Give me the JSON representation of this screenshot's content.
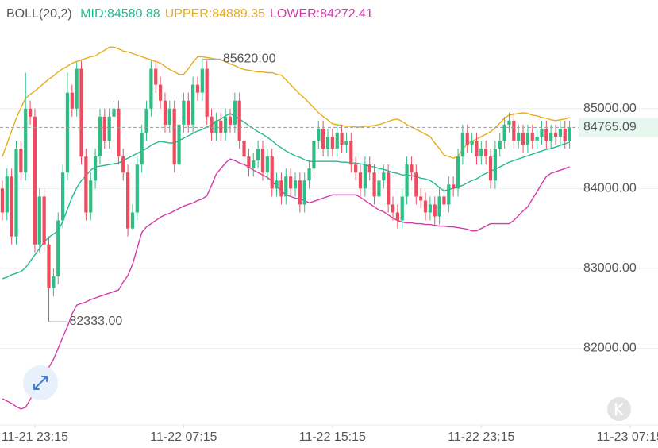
{
  "chart_data": {
    "type": "candlestick",
    "title": "BOLL(20,2)",
    "up_color": "#2ebd85",
    "down_color": "#ef4b5f",
    "open": [
      84000,
      83700,
      84150,
      83400,
      84500,
      84200,
      85000,
      84900,
      83300,
      83900,
      83300,
      82750,
      82900,
      83600,
      84200,
      85200,
      85000,
      85500,
      84400,
      83700,
      84100,
      84400,
      84900,
      84600,
      84900,
      85000,
      84400,
      84200,
      83500,
      83700,
      84300,
      84700,
      85000,
      85500,
      85300,
      85100,
      84800,
      85000,
      84300,
      84800,
      85100,
      84800,
      85300,
      85200,
      85500,
      84900,
      84700,
      84850,
      84700,
      84900,
      84800,
      85100,
      84600,
      84400,
      84250,
      84350,
      84500,
      84200,
      84400,
      84000,
      84100,
      83900,
      84150,
      84000,
      84100,
      83800,
      84100,
      84250,
      84600,
      84750,
      84500,
      84650,
      84500,
      84700,
      84550,
      84600,
      84300,
      84200,
      84000,
      84300,
      84200,
      83900,
      84100,
      84200,
      83800,
      83700,
      83600,
      83900,
      84300,
      84200,
      83900,
      83850,
      83700,
      83800,
      83650,
      83900,
      83800,
      84050,
      84000,
      84400,
      84700,
      84550,
      84600,
      84400,
      84500,
      84400,
      84100,
      84500,
      84600,
      84800,
      84850,
      84600,
      84700,
      84550,
      84700,
      84600,
      84650,
      84750,
      84600,
      84700,
      84650,
      84750,
      84600
    ],
    "high": [
      84100,
      84250,
      84250,
      84600,
      84600,
      85450,
      85100,
      85000,
      84000,
      84000,
      83400,
      83000,
      83700,
      84300,
      85450,
      85300,
      85580,
      85600,
      84500,
      84200,
      84500,
      85000,
      85000,
      85000,
      85100,
      85100,
      84500,
      84300,
      83800,
      84400,
      84800,
      85100,
      85600,
      85600,
      85400,
      85200,
      85100,
      85100,
      84900,
      85200,
      85200,
      85400,
      85400,
      85620,
      85600,
      85000,
      84950,
      84950,
      85000,
      85000,
      85200,
      85200,
      84700,
      84500,
      84450,
      84600,
      84600,
      84500,
      84500,
      84200,
      84200,
      84250,
      84250,
      84200,
      84200,
      84200,
      84350,
      84700,
      84850,
      84850,
      84750,
      84750,
      84800,
      84800,
      84700,
      84700,
      84400,
      84300,
      84400,
      84400,
      84300,
      84200,
      84300,
      84300,
      83900,
      83800,
      84000,
      84400,
      84400,
      84300,
      84000,
      83950,
      83900,
      83900,
      84000,
      84000,
      84150,
      84150,
      84500,
      84800,
      84800,
      84700,
      84700,
      84600,
      84600,
      84500,
      84600,
      84700,
      84900,
      84950,
      84950,
      84800,
      84800,
      84800,
      84800,
      84750,
      84850,
      84850,
      84800,
      84800,
      84850,
      84850,
      84850
    ],
    "low": [
      83600,
      83600,
      83300,
      83300,
      84100,
      84100,
      84800,
      83200,
      83200,
      83200,
      82333,
      82650,
      82800,
      83500,
      84100,
      84900,
      84900,
      84300,
      83600,
      83600,
      84000,
      84300,
      84500,
      84500,
      84800,
      84300,
      84100,
      83400,
      83480,
      83600,
      84200,
      84600,
      84900,
      85200,
      85000,
      84700,
      84700,
      84200,
      84200,
      84700,
      84700,
      84700,
      85100,
      85100,
      84800,
      84600,
      84600,
      84600,
      84600,
      84700,
      84700,
      84500,
      84300,
      84150,
      84150,
      84250,
      84100,
      84100,
      83900,
      83900,
      83800,
      83800,
      83900,
      83900,
      83700,
      83700,
      84000,
      84150,
      84500,
      84400,
      84400,
      84400,
      84400,
      84450,
      84450,
      84200,
      84100,
      83900,
      83900,
      84100,
      83800,
      83800,
      84000,
      83700,
      83600,
      83500,
      83500,
      83800,
      84100,
      83800,
      83750,
      83600,
      83600,
      83550,
      83550,
      83700,
      83700,
      83900,
      83900,
      84300,
      84450,
      84450,
      84300,
      84300,
      84300,
      84000,
      84000,
      84400,
      84500,
      84700,
      84500,
      84500,
      84450,
      84450,
      84500,
      84500,
      84550,
      84500,
      84500,
      84550,
      84550,
      84500,
      84500
    ],
    "close": [
      83700,
      84150,
      83400,
      84500,
      84200,
      85000,
      84900,
      83300,
      83900,
      83300,
      82750,
      82900,
      83600,
      84200,
      85200,
      85000,
      85500,
      84400,
      83700,
      84100,
      84400,
      84900,
      84600,
      84900,
      85000,
      84400,
      84200,
      83500,
      83700,
      84300,
      84700,
      85000,
      85500,
      85300,
      85100,
      84800,
      85000,
      84300,
      84800,
      85100,
      84800,
      85300,
      85200,
      85500,
      84900,
      84700,
      84850,
      84700,
      84900,
      84800,
      85100,
      84600,
      84400,
      84250,
      84350,
      84500,
      84200,
      84400,
      84000,
      84100,
      83900,
      84150,
      84000,
      84100,
      83800,
      84100,
      84250,
      84600,
      84750,
      84500,
      84650,
      84500,
      84700,
      84550,
      84600,
      84300,
      84200,
      84000,
      84300,
      84200,
      83900,
      84100,
      84200,
      83800,
      83700,
      83600,
      83900,
      84300,
      84200,
      83900,
      83850,
      83700,
      83800,
      83650,
      83900,
      83800,
      84050,
      84000,
      84400,
      84700,
      84550,
      84600,
      84400,
      84500,
      84400,
      84100,
      84500,
      84600,
      84800,
      84850,
      84600,
      84700,
      84550,
      84700,
      84600,
      84650,
      84750,
      84600,
      84700,
      84650,
      84750,
      84600,
      84765.09
    ],
    "bands": [
      {
        "name": "MID:84580.88",
        "color": "#25b993",
        "values": [
          82870,
          82890,
          82920,
          82940,
          82960,
          83010,
          83090,
          83170,
          83250,
          83330,
          83390,
          83430,
          83470,
          83590,
          83740,
          83890,
          84010,
          84100,
          84160,
          84230,
          84270,
          84280,
          84290,
          84300,
          84310,
          84320,
          84350,
          84380,
          84410,
          84440,
          84470,
          84500,
          84540,
          84570,
          84590,
          84580,
          84570,
          84570,
          84600,
          84630,
          84660,
          84690,
          84720,
          84740,
          84770,
          84800,
          84840,
          84870,
          84910,
          84940,
          84900,
          84870,
          84830,
          84790,
          84750,
          84710,
          84680,
          84640,
          84600,
          84550,
          84510,
          84470,
          84440,
          84410,
          84390,
          84360,
          84340,
          84340,
          84340,
          84340,
          84340,
          84340,
          84340,
          84330,
          84330,
          84320,
          84320,
          84310,
          84300,
          84280,
          84270,
          84250,
          84240,
          84220,
          84200,
          84190,
          84170,
          84170,
          84160,
          84150,
          84130,
          84120,
          84100,
          84060,
          84010,
          83970,
          83990,
          84000,
          84020,
          84040,
          84070,
          84100,
          84120,
          84160,
          84190,
          84220,
          84240,
          84270,
          84300,
          84330,
          84350,
          84370,
          84390,
          84410,
          84430,
          84450,
          84470,
          84490,
          84500,
          84520,
          84540,
          84560,
          84580.88
        ]
      },
      {
        "name": "UPPER:84889.35",
        "color": "#e8ac1c",
        "values": [
          84400,
          84560,
          84720,
          84880,
          85010,
          85130,
          85180,
          85220,
          85270,
          85320,
          85370,
          85410,
          85460,
          85500,
          85530,
          85570,
          85590,
          85610,
          85630,
          85650,
          85660,
          85700,
          85730,
          85770,
          85770,
          85750,
          85720,
          85710,
          85690,
          85670,
          85650,
          85630,
          85610,
          85590,
          85570,
          85530,
          85490,
          85460,
          85430,
          85430,
          85500,
          85580,
          85650,
          85650,
          85640,
          85630,
          85620,
          85610,
          85590,
          85560,
          85540,
          85510,
          85490,
          85480,
          85470,
          85460,
          85460,
          85450,
          85450,
          85430,
          85420,
          85360,
          85300,
          85240,
          85180,
          85130,
          85070,
          85010,
          84950,
          84900,
          84860,
          84810,
          84800,
          84790,
          84780,
          84780,
          84770,
          84770,
          84780,
          84780,
          84790,
          84800,
          84820,
          84840,
          84860,
          84870,
          84840,
          84800,
          84770,
          84740,
          84710,
          84680,
          84650,
          84570,
          84500,
          84420,
          84400,
          84380,
          84400,
          84490,
          84560,
          84590,
          84620,
          84650,
          84680,
          84710,
          84760,
          84820,
          84880,
          84920,
          84930,
          84940,
          84950,
          84940,
          84920,
          84910,
          84890,
          84880,
          84860,
          84850,
          84860,
          84870,
          84889.35
        ]
      },
      {
        "name": "LOWER:84272.41",
        "color": "#d43aa8",
        "values": [
          81370,
          81340,
          81310,
          81270,
          81240,
          81260,
          81360,
          81470,
          81570,
          81670,
          81760,
          81860,
          82000,
          82140,
          82270,
          82430,
          82540,
          82560,
          82580,
          82610,
          82630,
          82650,
          82670,
          82690,
          82710,
          82730,
          82830,
          82910,
          83050,
          83250,
          83450,
          83520,
          83560,
          83600,
          83640,
          83670,
          83690,
          83720,
          83750,
          83780,
          83800,
          83820,
          83850,
          83870,
          83910,
          84040,
          84180,
          84250,
          84320,
          84370,
          84350,
          84320,
          84300,
          84270,
          84230,
          84200,
          84170,
          84140,
          84090,
          84030,
          83970,
          83920,
          83900,
          83880,
          83870,
          83850,
          83820,
          83840,
          83860,
          83880,
          83900,
          83920,
          83920,
          83920,
          83920,
          83920,
          83920,
          83890,
          83850,
          83810,
          83770,
          83730,
          83710,
          83670,
          83630,
          83600,
          83580,
          83570,
          83570,
          83560,
          83560,
          83550,
          83550,
          83540,
          83530,
          83530,
          83520,
          83520,
          83510,
          83500,
          83490,
          83470,
          83470,
          83500,
          83530,
          83560,
          83560,
          83560,
          83560,
          83560,
          83600,
          83660,
          83720,
          83770,
          83870,
          83960,
          84060,
          84150,
          84190,
          84210,
          84230,
          84250,
          84272.41
        ]
      }
    ],
    "ylim": [
      81040,
      86360
    ],
    "yticks": [
      {
        "value": 82000,
        "label": "82000.00"
      },
      {
        "value": 83000,
        "label": "83000.00"
      },
      {
        "value": 84000,
        "label": "84000.00"
      },
      {
        "value": 85000,
        "label": "85000.00"
      }
    ],
    "xlim": [
      -0.5,
      140.5
    ],
    "xticks": [
      {
        "value": 7,
        "label": "11-21 23:15"
      },
      {
        "value": 39,
        "label": "11-22 07:15"
      },
      {
        "value": 71,
        "label": "11-22 15:15"
      },
      {
        "value": 103,
        "label": "11-22 23:15"
      },
      {
        "value": 135,
        "label": "11-23 07:15"
      }
    ],
    "extreme_labels": [
      {
        "value": 85620,
        "label": "85620.00"
      },
      {
        "value": 82333,
        "label": "82333.00"
      }
    ],
    "grid": true,
    "last_price_line": true
  }
}
